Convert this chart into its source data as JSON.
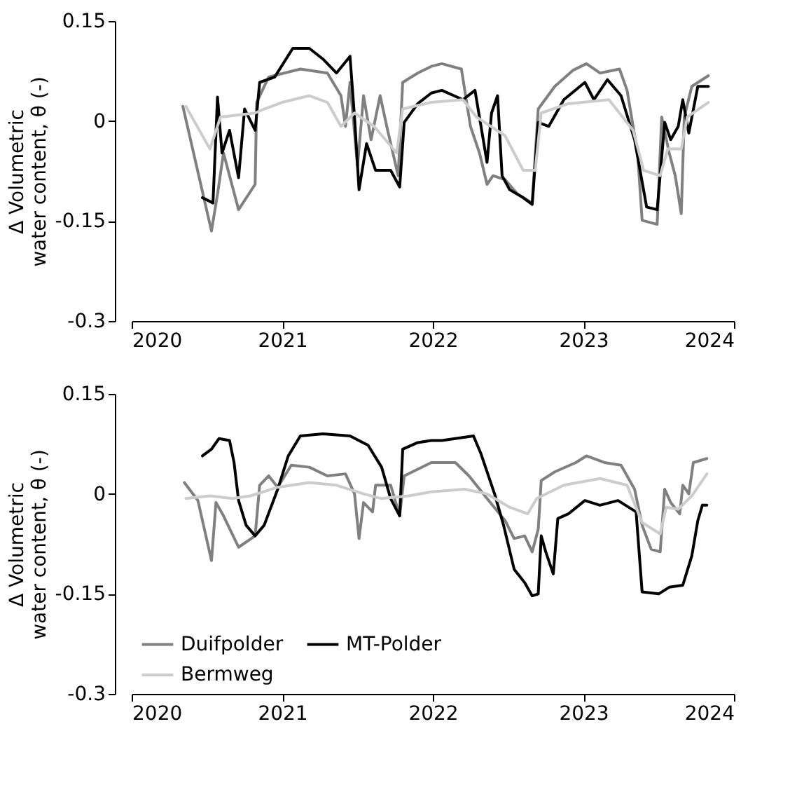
{
  "chart_data": [
    {
      "type": "line",
      "ylabel": "Δ Volumetric\nwater content, θ (-)",
      "xlim": [
        2020,
        2024
      ],
      "xticks": [
        2020,
        2021,
        2022,
        2023,
        2024
      ],
      "ylim": [
        -0.3,
        0.15
      ],
      "yticks": [
        -0.3,
        -0.15,
        0,
        0.15
      ],
      "grid": false,
      "line_style": "solid",
      "marker": "none",
      "series": [
        {
          "color": "#808080",
          "x": [
            2020.34,
            2020.53,
            2020.57,
            2020.61,
            2020.71,
            2020.82,
            2020.83,
            2020.91,
            2021.12,
            2021.3,
            2021.39,
            2021.42,
            2021.45,
            2021.5,
            2021.54,
            2021.59,
            2021.65,
            2021.7,
            2021.77,
            2021.8,
            2021.9,
            2021.99,
            2022.06,
            2022.19,
            2022.25,
            2022.31,
            2022.36,
            2022.4,
            2022.48,
            2022.56,
            2022.66,
            2022.7,
            2022.81,
            2022.93,
            2023.02,
            2023.11,
            2023.24,
            2023.29,
            2023.36,
            2023.39,
            2023.49,
            2023.52,
            2023.57,
            2023.61,
            2023.65,
            2023.67,
            2023.72,
            2023.83
          ],
          "values": [
            0.022,
            -0.165,
            -0.11,
            -0.048,
            -0.133,
            -0.095,
            0.028,
            0.066,
            0.078,
            0.072,
            0.038,
            -0.008,
            0.058,
            -0.068,
            0.038,
            -0.028,
            0.038,
            -0.014,
            -0.082,
            0.058,
            0.072,
            0.082,
            0.086,
            0.078,
            -0.008,
            -0.048,
            -0.095,
            -0.082,
            -0.088,
            -0.109,
            -0.123,
            0.018,
            0.052,
            0.076,
            0.086,
            0.072,
            0.078,
            0.046,
            -0.048,
            -0.149,
            -0.155,
            0.006,
            -0.048,
            -0.082,
            -0.139,
            0.006,
            0.052,
            0.068
          ]
        },
        {
          "color": "#000000",
          "x": [
            2020.47,
            2020.54,
            2020.57,
            2020.6,
            2020.65,
            2020.71,
            2020.75,
            2020.82,
            2020.85,
            2020.95,
            2021.07,
            2021.18,
            2021.27,
            2021.36,
            2021.45,
            2021.48,
            2021.51,
            2021.56,
            2021.62,
            2021.72,
            2021.78,
            2021.81,
            2021.9,
            2021.99,
            2022.06,
            2022.2,
            2022.28,
            2022.36,
            2022.39,
            2022.43,
            2022.46,
            2022.51,
            2022.6,
            2022.66,
            2022.7,
            2022.77,
            2022.87,
            2023.01,
            2023.07,
            2023.16,
            2023.25,
            2023.34,
            2023.42,
            2023.49,
            2023.54,
            2023.58,
            2023.63,
            2023.66,
            2023.7,
            2023.76,
            2023.83
          ],
          "values": [
            -0.115,
            -0.123,
            0.036,
            -0.048,
            -0.014,
            -0.085,
            0.018,
            -0.014,
            0.058,
            0.066,
            0.109,
            0.109,
            0.093,
            0.072,
            0.097,
            0.006,
            -0.103,
            -0.034,
            -0.074,
            -0.074,
            -0.099,
            -0.002,
            0.026,
            0.042,
            0.046,
            0.032,
            0.046,
            -0.062,
            0.012,
            0.038,
            -0.082,
            -0.103,
            -0.115,
            -0.125,
            -0.002,
            -0.008,
            0.032,
            0.058,
            0.032,
            0.062,
            0.038,
            -0.028,
            -0.129,
            -0.133,
            -0.002,
            -0.028,
            -0.008,
            0.032,
            -0.018,
            0.052,
            0.052
          ]
        },
        {
          "color": "#cccccc",
          "x": [
            2020.36,
            2020.52,
            2020.59,
            2020.82,
            2020.88,
            2021.0,
            2021.18,
            2021.3,
            2021.39,
            2021.48,
            2021.61,
            2021.76,
            2021.8,
            2021.99,
            2022.2,
            2022.29,
            2022.48,
            2022.6,
            2022.68,
            2022.72,
            2022.9,
            2023.17,
            2023.33,
            2023.4,
            2023.51,
            2023.56,
            2023.65,
            2023.69,
            2023.83
          ],
          "values": [
            0.022,
            -0.042,
            0.006,
            0.012,
            0.018,
            0.028,
            0.038,
            0.028,
            -0.008,
            0.012,
            -0.008,
            -0.048,
            0.018,
            0.028,
            0.032,
            0.006,
            -0.022,
            -0.074,
            -0.074,
            0.012,
            0.026,
            0.032,
            -0.014,
            -0.074,
            -0.082,
            -0.042,
            -0.042,
            0.006,
            0.028
          ]
        }
      ]
    },
    {
      "type": "line",
      "ylabel": "Δ Volumetric\nwater content, θ (-)",
      "xlim": [
        2020,
        2024
      ],
      "xticks": [
        2020,
        2021,
        2022,
        2023,
        2024
      ],
      "ylim": [
        -0.3,
        0.15
      ],
      "yticks": [
        -0.3,
        -0.15,
        0,
        0.15
      ],
      "grid": false,
      "line_style": "solid",
      "marker": "none",
      "legend": "bottom left",
      "series": [
        {
          "name": "Duifpolder",
          "color": "#808080",
          "x": [
            2020.35,
            2020.44,
            2020.53,
            2020.56,
            2020.61,
            2020.71,
            2020.82,
            2020.85,
            2020.91,
            2020.97,
            2021.06,
            2021.18,
            2021.3,
            2021.42,
            2021.48,
            2021.51,
            2021.54,
            2021.6,
            2021.62,
            2021.72,
            2021.78,
            2021.81,
            2021.99,
            2022.15,
            2022.24,
            2022.36,
            2022.48,
            2022.54,
            2022.61,
            2022.66,
            2022.7,
            2022.72,
            2022.81,
            2022.95,
            2023.02,
            2023.14,
            2023.25,
            2023.34,
            2023.39,
            2023.45,
            2023.51,
            2023.54,
            2023.58,
            2023.64,
            2023.66,
            2023.7,
            2023.73,
            2023.82
          ],
          "values": [
            0.017,
            -0.01,
            -0.1,
            -0.013,
            -0.033,
            -0.08,
            -0.063,
            0.013,
            0.027,
            0.01,
            0.043,
            0.04,
            0.027,
            0.03,
            0.0,
            -0.067,
            -0.013,
            -0.027,
            0.013,
            0.013,
            -0.033,
            0.027,
            0.047,
            0.047,
            0.027,
            -0.007,
            -0.04,
            -0.067,
            -0.063,
            -0.087,
            -0.053,
            0.02,
            0.033,
            0.047,
            0.057,
            0.047,
            0.043,
            0.007,
            -0.047,
            -0.083,
            -0.087,
            0.007,
            -0.013,
            -0.03,
            0.013,
            0.0,
            0.047,
            0.053
          ]
        },
        {
          "name": "MT-Polder",
          "color": "#000000",
          "x": [
            2020.47,
            2020.53,
            2020.58,
            2020.65,
            2020.68,
            2020.71,
            2020.76,
            2020.82,
            2020.88,
            2020.97,
            2021.04,
            2021.12,
            2021.27,
            2021.45,
            2021.57,
            2021.66,
            2021.72,
            2021.78,
            2021.8,
            2021.9,
            2021.99,
            2022.06,
            2022.27,
            2022.32,
            2022.41,
            2022.47,
            2022.54,
            2022.61,
            2022.66,
            2022.7,
            2022.72,
            2022.75,
            2022.8,
            2022.83,
            2022.9,
            2023.01,
            2023.11,
            2023.23,
            2023.35,
            2023.39,
            2023.5,
            2023.57,
            2023.66,
            2023.72,
            2023.76,
            2023.79,
            2023.82
          ],
          "values": [
            0.057,
            0.067,
            0.083,
            0.08,
            0.047,
            -0.01,
            -0.047,
            -0.063,
            -0.047,
            0.007,
            0.057,
            0.087,
            0.09,
            0.087,
            0.073,
            0.04,
            -0.007,
            -0.033,
            0.067,
            0.077,
            0.08,
            0.08,
            0.087,
            0.06,
            0.0,
            -0.047,
            -0.113,
            -0.133,
            -0.153,
            -0.15,
            -0.063,
            -0.087,
            -0.12,
            -0.037,
            -0.03,
            -0.01,
            -0.017,
            -0.01,
            -0.027,
            -0.147,
            -0.15,
            -0.14,
            -0.137,
            -0.093,
            -0.04,
            -0.017,
            -0.017
          ]
        },
        {
          "name": "Bermweg",
          "color": "#cccccc",
          "x": [
            2020.36,
            2020.52,
            2020.67,
            2020.79,
            2020.97,
            2021.18,
            2021.36,
            2021.54,
            2021.66,
            2021.84,
            2021.99,
            2022.21,
            2022.36,
            2022.51,
            2022.63,
            2022.69,
            2022.87,
            2023.11,
            2023.29,
            2023.39,
            2023.51,
            2023.55,
            2023.63,
            2023.72,
            2023.82
          ],
          "values": [
            -0.007,
            -0.003,
            -0.007,
            -0.003,
            0.01,
            0.017,
            0.013,
            0.0,
            -0.007,
            -0.003,
            0.003,
            0.007,
            0.0,
            -0.02,
            -0.03,
            -0.007,
            0.013,
            0.023,
            0.013,
            -0.043,
            -0.06,
            -0.02,
            -0.023,
            -0.003,
            0.03
          ]
        }
      ]
    }
  ]
}
